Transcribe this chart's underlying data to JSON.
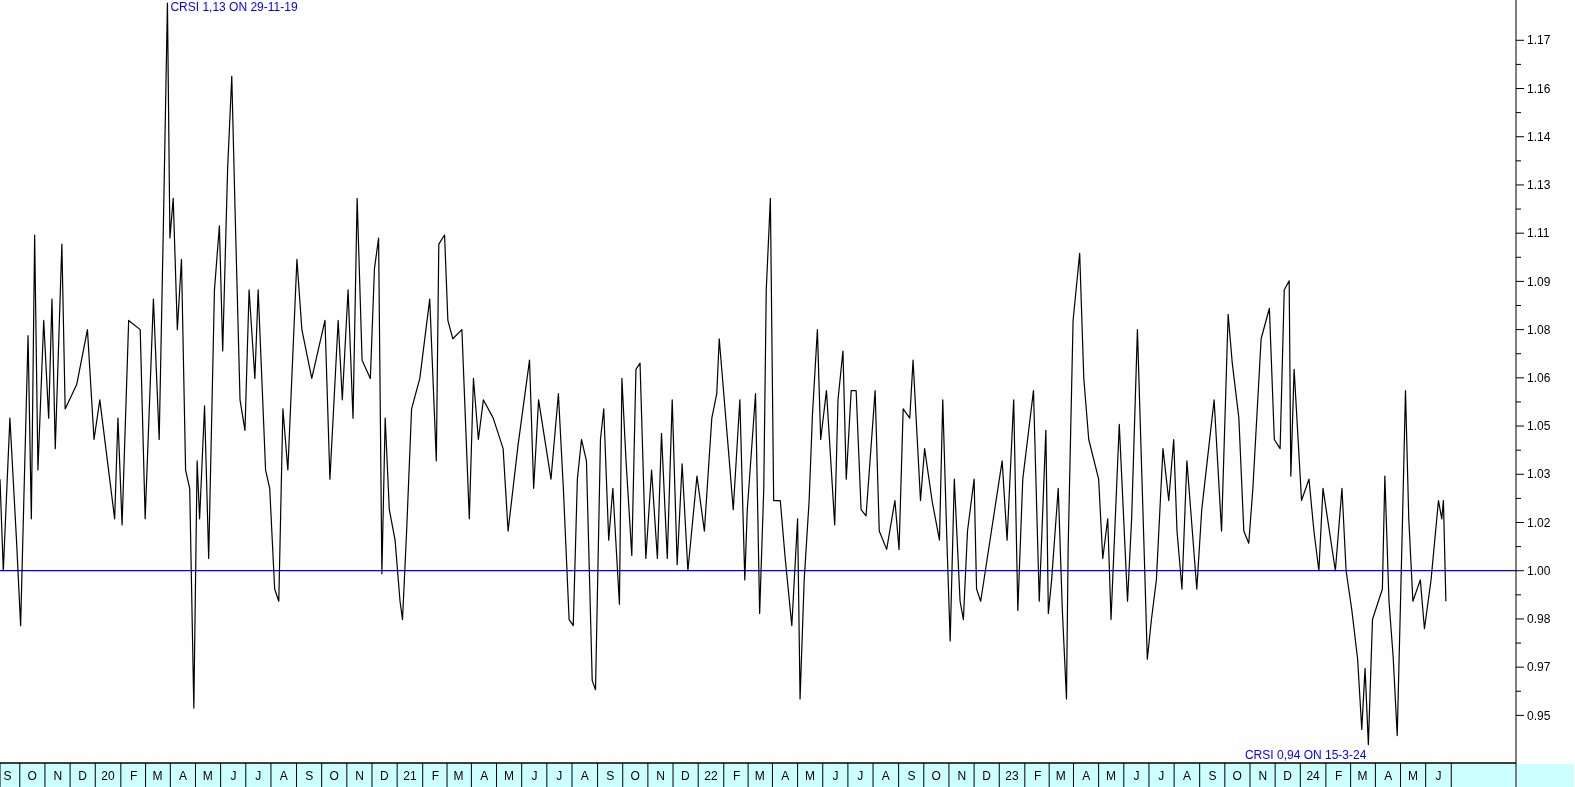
{
  "chart_data": {
    "type": "line",
    "color": "#000000",
    "line_style": "solid",
    "marker": "none",
    "grid": false,
    "xlim": [
      "2019-09-06",
      "2024-09-17"
    ],
    "ylim": [
      0.937,
      1.187
    ],
    "yticks": [
      {
        "value": 0.9526,
        "label": "0.95"
      },
      {
        "value": 0.9605,
        "label": null
      },
      {
        "value": 0.9684,
        "label": "0.97"
      },
      {
        "value": 0.9763,
        "label": null
      },
      {
        "value": 0.9842,
        "label": "0.98"
      },
      {
        "value": 0.9921,
        "label": null
      },
      {
        "value": 1,
        "label": "1.00"
      },
      {
        "value": 1.0079,
        "label": null
      },
      {
        "value": 1.0158,
        "label": "1.02"
      },
      {
        "value": 1.0237,
        "label": null
      },
      {
        "value": 1.0316,
        "label": "1.03"
      },
      {
        "value": 1.0395,
        "label": null
      },
      {
        "value": 1.0474,
        "label": "1.05"
      },
      {
        "value": 1.0553,
        "label": null
      },
      {
        "value": 1.0632,
        "label": "1.06"
      },
      {
        "value": 1.0711,
        "label": null
      },
      {
        "value": 1.079,
        "label": "1.08"
      },
      {
        "value": 1.0869,
        "label": null
      },
      {
        "value": 1.0948,
        "label": "1.09"
      },
      {
        "value": 1.1027,
        "label": null
      },
      {
        "value": 1.1106,
        "label": "1.11"
      },
      {
        "value": 1.1185,
        "label": null
      },
      {
        "value": 1.1264,
        "label": "1.13"
      },
      {
        "value": 1.1343,
        "label": null
      },
      {
        "value": 1.1422,
        "label": "1.14"
      },
      {
        "value": 1.1501,
        "label": null
      },
      {
        "value": 1.158,
        "label": "1.16"
      },
      {
        "value": 1.1659,
        "label": null
      },
      {
        "value": 1.1738,
        "label": "1.17"
      }
    ],
    "xticks": [
      {
        "value": "2019-09-15",
        "label": "S"
      },
      {
        "value": "2019-10-15",
        "label": "O"
      },
      {
        "value": "2019-11-15",
        "label": "N"
      },
      {
        "value": "2019-12-15",
        "label": "D"
      },
      {
        "value": "2020-01-15",
        "label": "20"
      },
      {
        "value": "2020-02-15",
        "label": "F"
      },
      {
        "value": "2020-03-15",
        "label": "M"
      },
      {
        "value": "2020-04-15",
        "label": "A"
      },
      {
        "value": "2020-05-15",
        "label": "M"
      },
      {
        "value": "2020-06-15",
        "label": "J"
      },
      {
        "value": "2020-07-15",
        "label": "J"
      },
      {
        "value": "2020-08-15",
        "label": "A"
      },
      {
        "value": "2020-09-15",
        "label": "S"
      },
      {
        "value": "2020-10-15",
        "label": "O"
      },
      {
        "value": "2020-11-15",
        "label": "N"
      },
      {
        "value": "2020-12-15",
        "label": "D"
      },
      {
        "value": "2021-01-15",
        "label": "21"
      },
      {
        "value": "2021-02-15",
        "label": "F"
      },
      {
        "value": "2021-03-15",
        "label": "M"
      },
      {
        "value": "2021-04-15",
        "label": "A"
      },
      {
        "value": "2021-05-15",
        "label": "M"
      },
      {
        "value": "2021-06-15",
        "label": "J"
      },
      {
        "value": "2021-07-15",
        "label": "J"
      },
      {
        "value": "2021-08-15",
        "label": "A"
      },
      {
        "value": "2021-09-15",
        "label": "S"
      },
      {
        "value": "2021-10-15",
        "label": "O"
      },
      {
        "value": "2021-11-15",
        "label": "N"
      },
      {
        "value": "2021-12-15",
        "label": "D"
      },
      {
        "value": "2022-01-15",
        "label": "22"
      },
      {
        "value": "2022-02-15",
        "label": "F"
      },
      {
        "value": "2022-03-15",
        "label": "M"
      },
      {
        "value": "2022-04-15",
        "label": "A"
      },
      {
        "value": "2022-05-15",
        "label": "M"
      },
      {
        "value": "2022-06-15",
        "label": "J"
      },
      {
        "value": "2022-07-15",
        "label": "J"
      },
      {
        "value": "2022-08-15",
        "label": "A"
      },
      {
        "value": "2022-09-15",
        "label": "S"
      },
      {
        "value": "2022-10-15",
        "label": "O"
      },
      {
        "value": "2022-11-15",
        "label": "N"
      },
      {
        "value": "2022-12-15",
        "label": "D"
      },
      {
        "value": "2023-01-15",
        "label": "23"
      },
      {
        "value": "2023-02-15",
        "label": "F"
      },
      {
        "value": "2023-03-15",
        "label": "M"
      },
      {
        "value": "2023-04-15",
        "label": "A"
      },
      {
        "value": "2023-05-15",
        "label": "M"
      },
      {
        "value": "2023-06-15",
        "label": "J"
      },
      {
        "value": "2023-07-15",
        "label": "J"
      },
      {
        "value": "2023-08-15",
        "label": "A"
      },
      {
        "value": "2023-09-15",
        "label": "S"
      },
      {
        "value": "2023-10-15",
        "label": "O"
      },
      {
        "value": "2023-11-15",
        "label": "N"
      },
      {
        "value": "2023-12-15",
        "label": "D"
      },
      {
        "value": "2024-01-15",
        "label": "24"
      },
      {
        "value": "2024-02-15",
        "label": "F"
      },
      {
        "value": "2024-03-15",
        "label": "M"
      },
      {
        "value": "2024-04-15",
        "label": "A"
      },
      {
        "value": "2024-05-15",
        "label": "M"
      },
      {
        "value": "2024-06-15",
        "label": "J"
      }
    ],
    "ref_lines": [
      {
        "axis": "y",
        "value": 1,
        "color": "#0000ff"
      }
    ],
    "annotations": [
      "CRSI 1,13 ON 29-11-19",
      "CRSI 0,94 ON 15-3-24"
    ],
    "x": [
      "2019-09-06",
      "2019-09-10",
      "2019-09-18",
      "2019-09-26",
      "2019-10-01",
      "2019-10-10",
      "2019-10-14",
      "2019-10-18",
      "2019-10-22",
      "2019-10-29",
      "2019-11-04",
      "2019-11-08",
      "2019-11-12",
      "2019-11-20",
      "2019-11-24",
      "2019-12-08",
      "2019-12-21",
      "2019-12-29",
      "2020-01-05",
      "2020-01-17",
      "2020-01-23",
      "2020-01-27",
      "2020-02-01",
      "2020-02-09",
      "2020-02-23",
      "2020-02-29",
      "2020-03-10",
      "2020-03-17",
      "2020-03-22",
      "2020-03-27",
      "2020-03-30",
      "2020-04-03",
      "2020-04-08",
      "2020-04-13",
      "2020-04-18",
      "2020-04-23",
      "2020-04-28",
      "2020-05-02",
      "2020-05-05",
      "2020-05-11",
      "2020-05-16",
      "2020-05-23",
      "2020-05-29",
      "2020-06-02",
      "2020-06-08",
      "2020-06-13",
      "2020-06-17",
      "2020-06-23",
      "2020-06-29",
      "2020-07-04",
      "2020-07-11",
      "2020-07-15",
      "2020-07-24",
      "2020-07-29",
      "2020-08-04",
      "2020-08-09",
      "2020-08-14",
      "2020-08-20",
      "2020-08-31",
      "2020-09-06",
      "2020-09-18",
      "2020-10-04",
      "2020-10-10",
      "2020-10-20",
      "2020-10-25",
      "2020-11-01",
      "2020-11-07",
      "2020-11-12",
      "2020-11-18",
      "2020-11-28",
      "2020-12-03",
      "2020-12-08",
      "2020-12-12",
      "2020-12-16",
      "2020-12-21",
      "2020-12-28",
      "2021-01-03",
      "2021-01-06",
      "2021-01-11",
      "2021-01-17",
      "2021-01-27",
      "2021-02-08",
      "2021-02-16",
      "2021-02-19",
      "2021-02-26",
      "2021-03-02",
      "2021-03-08",
      "2021-03-19",
      "2021-03-28",
      "2021-04-02",
      "2021-04-08",
      "2021-04-14",
      "2021-04-26",
      "2021-05-08",
      "2021-05-14",
      "2021-05-26",
      "2021-06-09",
      "2021-06-14",
      "2021-06-20",
      "2021-07-05",
      "2021-07-14",
      "2021-07-20",
      "2021-07-27",
      "2021-08-01",
      "2021-08-06",
      "2021-08-11",
      "2021-08-17",
      "2021-08-24",
      "2021-08-28",
      "2021-09-03",
      "2021-09-07",
      "2021-09-13",
      "2021-09-18",
      "2021-09-26",
      "2021-09-29",
      "2021-10-04",
      "2021-10-11",
      "2021-10-16",
      "2021-10-21",
      "2021-10-28",
      "2021-11-04",
      "2021-11-11",
      "2021-11-16",
      "2021-11-23",
      "2021-11-29",
      "2021-12-05",
      "2021-12-11",
      "2021-12-18",
      "2021-12-29",
      "2022-01-07",
      "2022-01-16",
      "2022-01-22",
      "2022-01-25",
      "2022-02-05",
      "2022-02-11",
      "2022-02-19",
      "2022-02-25",
      "2022-02-28",
      "2022-03-10",
      "2022-03-15",
      "2022-03-20",
      "2022-03-23",
      "2022-03-28",
      "2022-04-01",
      "2022-04-09",
      "2022-04-15",
      "2022-04-23",
      "2022-04-30",
      "2022-05-03",
      "2022-05-08",
      "2022-05-14",
      "2022-05-18",
      "2022-05-24",
      "2022-05-28",
      "2022-06-04",
      "2022-06-14",
      "2022-06-18",
      "2022-06-24",
      "2022-06-28",
      "2022-07-04",
      "2022-07-10",
      "2022-07-16",
      "2022-07-22",
      "2022-08-02",
      "2022-08-07",
      "2022-08-16",
      "2022-08-26",
      "2022-08-31",
      "2022-09-05",
      "2022-09-13",
      "2022-09-17",
      "2022-09-26",
      "2022-10-01",
      "2022-10-10",
      "2022-10-19",
      "2022-10-23",
      "2022-10-28",
      "2022-11-01",
      "2022-11-06",
      "2022-11-13",
      "2022-11-17",
      "2022-11-22",
      "2022-11-30",
      "2022-12-03",
      "2022-12-08",
      "2023-01-03",
      "2023-01-09",
      "2023-01-17",
      "2023-01-22",
      "2023-01-28",
      "2023-02-10",
      "2023-02-17",
      "2023-02-25",
      "2023-02-28",
      "2023-03-04",
      "2023-03-12",
      "2023-03-17",
      "2023-03-22",
      "2023-03-24",
      "2023-03-30",
      "2023-04-07",
      "2023-04-12",
      "2023-04-18",
      "2023-04-30",
      "2023-05-05",
      "2023-05-11",
      "2023-05-15",
      "2023-05-25",
      "2023-06-04",
      "2023-06-09",
      "2023-06-16",
      "2023-06-25",
      "2023-06-28",
      "2023-07-03",
      "2023-07-09",
      "2023-07-17",
      "2023-07-24",
      "2023-07-30",
      "2023-08-03",
      "2023-08-09",
      "2023-08-15",
      "2023-08-27",
      "2023-09-02",
      "2023-09-17",
      "2023-09-26",
      "2023-10-04",
      "2023-10-09",
      "2023-10-17",
      "2023-10-23",
      "2023-10-29",
      "2023-11-03",
      "2023-11-13",
      "2023-11-23",
      "2023-11-29",
      "2023-12-06",
      "2023-12-11",
      "2023-12-17",
      "2023-12-19",
      "2023-12-23",
      "2024-01-01",
      "2024-01-10",
      "2024-01-16",
      "2024-01-22",
      "2024-01-27",
      "2024-02-11",
      "2024-02-19",
      "2024-02-24",
      "2024-03-02",
      "2024-03-09",
      "2024-03-14",
      "2024-03-18",
      "2024-03-22",
      "2024-03-27",
      "2024-04-08",
      "2024-04-11",
      "2024-04-16",
      "2024-04-21",
      "2024-04-26",
      "2024-05-02",
      "2024-05-06",
      "2024-05-10",
      "2024-05-15",
      "2024-05-24",
      "2024-05-29",
      "2024-06-06",
      "2024-06-15",
      "2024-06-19",
      "2024-06-21",
      "2024-06-24"
    ],
    "values": [
      1.03,
      1.0,
      1.05,
      1.01,
      0.982,
      1.077,
      1.017,
      1.11,
      1.033,
      1.082,
      1.05,
      1.089,
      1.04,
      1.107,
      1.053,
      1.061,
      1.079,
      1.043,
      1.056,
      1.03,
      1.017,
      1.05,
      1.015,
      1.082,
      1.079,
      1.017,
      1.089,
      1.043,
      1.112,
      1.186,
      1.109,
      1.122,
      1.079,
      1.102,
      1.033,
      1.027,
      0.955,
      1.036,
      1.017,
      1.054,
      1.004,
      1.092,
      1.113,
      1.072,
      1.132,
      1.162,
      1.118,
      1.056,
      1.046,
      1.092,
      1.063,
      1.092,
      1.033,
      1.027,
      0.994,
      0.99,
      1.053,
      1.033,
      1.102,
      1.079,
      1.063,
      1.082,
      1.03,
      1.082,
      1.056,
      1.092,
      1.05,
      1.122,
      1.069,
      1.063,
      1.099,
      1.109,
      0.999,
      1.05,
      1.02,
      1.01,
      0.99,
      0.984,
      1.013,
      1.053,
      1.063,
      1.089,
      1.036,
      1.107,
      1.11,
      1.082,
      1.076,
      1.079,
      1.017,
      1.063,
      1.043,
      1.056,
      1.05,
      1.04,
      1.013,
      1.041,
      1.069,
      1.027,
      1.056,
      1.03,
      1.058,
      1.027,
      0.984,
      0.982,
      1.03,
      1.043,
      1.036,
      0.964,
      0.961,
      1.043,
      1.053,
      1.01,
      1.027,
      0.989,
      1.063,
      1.036,
      1.005,
      1.066,
      1.068,
      1.004,
      1.033,
      1.004,
      1.045,
      1.004,
      1.056,
      1.002,
      1.035,
      1.0,
      1.031,
      1.013,
      1.05,
      1.058,
      1.076,
      1.04,
      1.02,
      1.056,
      0.997,
      1.02,
      1.058,
      0.986,
      1.027,
      1.092,
      1.122,
      1.023,
      1.023,
      1.004,
      0.982,
      1.017,
      0.958,
      0.997,
      1.023,
      1.051,
      1.079,
      1.043,
      1.059,
      1.015,
      1.056,
      1.072,
      1.03,
      1.059,
      1.059,
      1.02,
      1.018,
      1.059,
      1.013,
      1.007,
      1.023,
      1.007,
      1.053,
      1.05,
      1.069,
      1.023,
      1.04,
      1.023,
      1.01,
      1.056,
      1.01,
      0.977,
      1.03,
      0.99,
      0.984,
      1.013,
      1.03,
      0.994,
      0.99,
      1.036,
      1.01,
      1.056,
      0.987,
      1.03,
      1.059,
      0.99,
      1.046,
      0.986,
      0.997,
      1.027,
      0.987,
      0.958,
      1.007,
      1.082,
      1.104,
      1.063,
      1.043,
      1.03,
      1.004,
      1.017,
      0.984,
      1.048,
      0.99,
      1.017,
      1.079,
      0.999,
      0.971,
      0.984,
      0.997,
      1.04,
      1.023,
      1.043,
      1.013,
      0.994,
      1.036,
      0.994,
      1.02,
      1.056,
      1.013,
      1.084,
      1.068,
      1.05,
      1.013,
      1.009,
      1.027,
      1.076,
      1.086,
      1.043,
      1.04,
      1.092,
      1.095,
      1.031,
      1.066,
      1.023,
      1.03,
      1.013,
      1.0,
      1.027,
      1.0,
      1.027,
      1.0,
      0.987,
      0.971,
      0.948,
      0.968,
      0.943,
      0.984,
      0.994,
      1.031,
      0.99,
      0.972,
      0.946,
      1.012,
      1.059,
      1.017,
      0.99,
      0.997,
      0.981,
      0.997,
      1.023,
      1.017,
      1.023,
      0.99
    ]
  }
}
